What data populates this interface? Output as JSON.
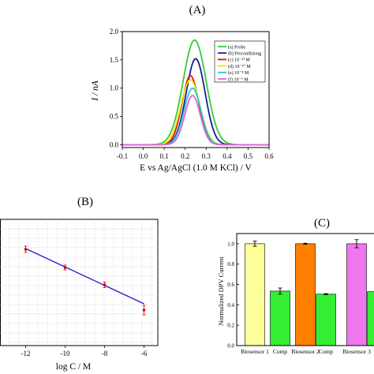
{
  "chart_data": [
    {
      "panel_label": "(A)",
      "type": "line",
      "xlabel": "E vs Ag/AgCl (1.0 M KCl) / V",
      "ylabel": "I / nA",
      "xlim": [
        -0.1,
        0.6
      ],
      "ylim": [
        -0.05,
        2.0
      ],
      "x_ticks": [
        "-0.1",
        "0.0",
        "0.1",
        "0.2",
        "0.3",
        "0.4",
        "0.5",
        "0.6"
      ],
      "y_ticks": [
        "0.0",
        "0.5",
        "1.0",
        "1.5",
        "2.0"
      ],
      "legend_position": "top-right",
      "series": [
        {
          "name": "(a) Probe",
          "color": "#33cc33",
          "peak_x": 0.245,
          "peak_y": 1.85,
          "sigma": 0.055
        },
        {
          "name": "(b) Preconditiong",
          "color": "#1a1a99",
          "peak_x": 0.25,
          "peak_y": 1.52,
          "sigma": 0.045
        },
        {
          "name": "(c) 10⁻¹² M",
          "color": "#dd1111",
          "peak_x": 0.225,
          "peak_y": 1.22,
          "sigma": 0.04
        },
        {
          "name": "(d) 10⁻¹⁰ M",
          "color": "#e6e600",
          "peak_x": 0.225,
          "peak_y": 1.15,
          "sigma": 0.045
        },
        {
          "name": "(e) 10⁻⁸ M",
          "color": "#22cccc",
          "peak_x": 0.235,
          "peak_y": 1.0,
          "sigma": 0.04
        },
        {
          "name": "(f) 10⁻⁶ M",
          "color": "#dd66dd",
          "peak_x": 0.235,
          "peak_y": 0.87,
          "sigma": 0.037
        }
      ]
    },
    {
      "panel_label": "(B)",
      "type": "scatter",
      "xlabel": "log C / M",
      "ylabel": "",
      "xlim": [
        -13.3,
        -5.3
      ],
      "ylim": [
        0.0,
        1.6
      ],
      "x_ticks": [
        "-12",
        "-10",
        "-8",
        "-6"
      ],
      "x_tick_values": [
        -12,
        -10,
        -8,
        -6
      ],
      "grid": true,
      "points": [
        {
          "x": -12,
          "y": 1.22,
          "err": 0.04
        },
        {
          "x": -10,
          "y": 0.99,
          "err": 0.03
        },
        {
          "x": -8,
          "y": 0.77,
          "err": 0.035
        },
        {
          "x": -6,
          "y": 0.45,
          "err": 0.06
        }
      ],
      "fit_line": {
        "x": [
          -12,
          -6
        ],
        "y": [
          1.23,
          0.53
        ],
        "color": "#1a1ac8"
      }
    },
    {
      "panel_label": "(C)",
      "type": "bar",
      "ylabel": "Normalized DPV Current",
      "ylim": [
        0.0,
        1.1
      ],
      "y_ticks": [
        "0.0",
        "0.2",
        "0.4",
        "0.6",
        "0.8",
        "1.0"
      ],
      "categories": [
        "Biosensor 1",
        "Comp",
        "Biosensor 2",
        "Comp",
        "Biosensor 3",
        ""
      ],
      "values": [
        1.0,
        0.535,
        1.0,
        0.505,
        1.0,
        0.53
      ],
      "errors": [
        0.025,
        0.03,
        0.005,
        0.005,
        0.04,
        0.0
      ],
      "colors": [
        "#ffff99",
        "#33ee33",
        "#ff7f00",
        "#33ee33",
        "#ee77ee",
        "#33ee33"
      ]
    }
  ]
}
